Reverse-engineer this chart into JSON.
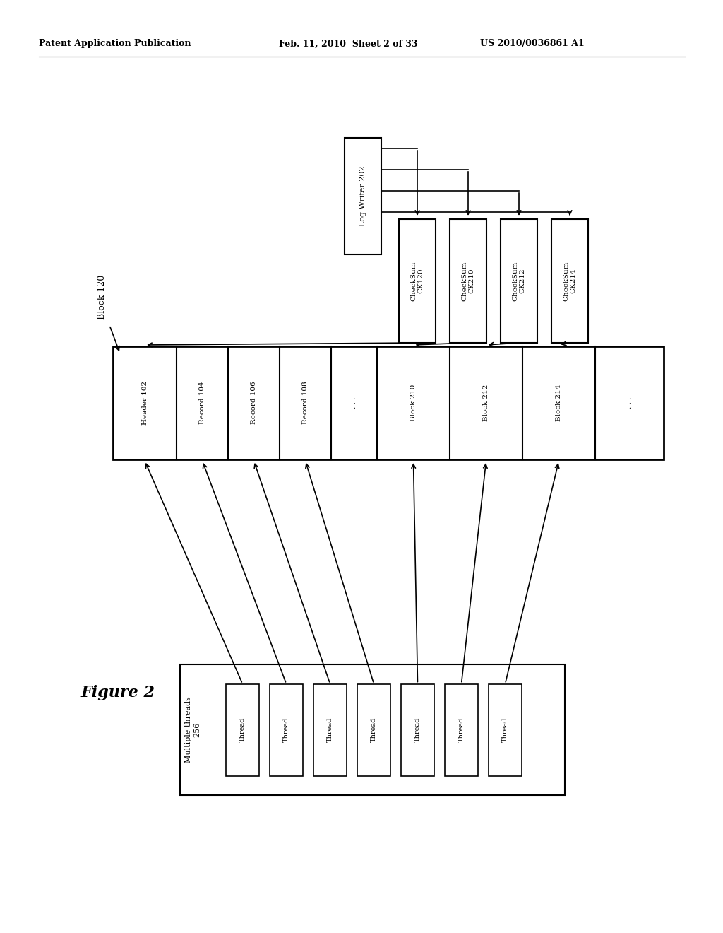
{
  "bg_color": "#ffffff",
  "header_text_left": "Patent Application Publication",
  "header_text_mid": "Feb. 11, 2010  Sheet 2 of 33",
  "header_text_right": "US 2010/0036861 A1",
  "figure_label": "Figure 2",
  "log_writer_label": "Log Writer 202",
  "checksum_labels": [
    "CheckSum\nCK120",
    "CheckSum\nCK210",
    "CheckSum\nCK212",
    "CheckSum\nCK214"
  ],
  "block120_label": "Block 120",
  "seg_labels": [
    "Header 102",
    "Record 104",
    "Record 106",
    "Record 108",
    ". . .",
    "Block 210",
    "Block 212",
    "Block 214",
    ". . ."
  ],
  "threads_label": "Multiple threads\n256",
  "thread_count": 7
}
